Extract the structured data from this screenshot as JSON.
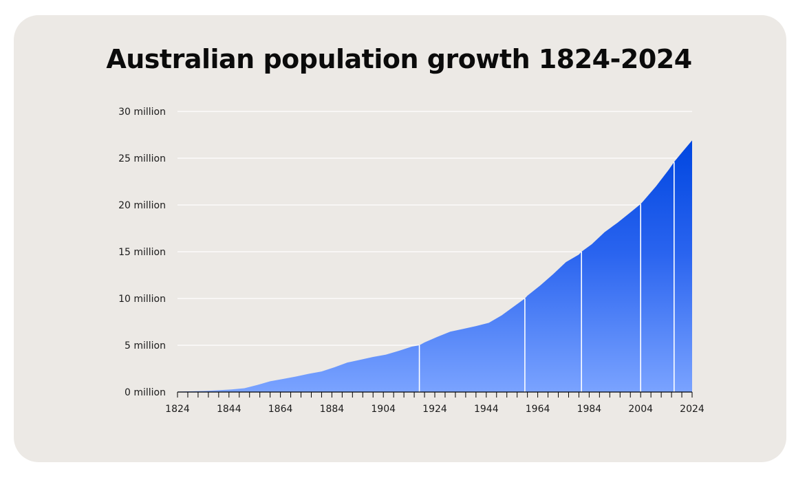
{
  "chart_data": {
    "type": "area",
    "title": "Australian population growth 1824-2024",
    "xlabel": "",
    "ylabel": "",
    "xlim": [
      1824,
      2024
    ],
    "ylim": [
      0,
      30000000
    ],
    "grid": true,
    "colors": {
      "top": "#0046e0",
      "bottom": "#7aa3ff",
      "background": "#ece9e5",
      "gridline": "#ffffff",
      "axis": "#000000"
    },
    "y_ticks": [
      {
        "value": 0,
        "label": "0 million"
      },
      {
        "value": 5000000,
        "label": "5 million"
      },
      {
        "value": 10000000,
        "label": "10 million"
      },
      {
        "value": 15000000,
        "label": "15 million"
      },
      {
        "value": 20000000,
        "label": "20 million"
      },
      {
        "value": 25000000,
        "label": "25 million"
      },
      {
        "value": 30000000,
        "label": "30 million"
      }
    ],
    "x_ticks": [
      {
        "value": 1824,
        "label": "1824"
      },
      {
        "value": 1844,
        "label": "1844"
      },
      {
        "value": 1864,
        "label": "1864"
      },
      {
        "value": 1884,
        "label": "1884"
      },
      {
        "value": 1904,
        "label": "1904"
      },
      {
        "value": 1924,
        "label": "1924"
      },
      {
        "value": 1944,
        "label": "1944"
      },
      {
        "value": 1964,
        "label": "1964"
      },
      {
        "value": 1984,
        "label": "1984"
      },
      {
        "value": 2004,
        "label": "2004"
      },
      {
        "value": 2024,
        "label": "2024"
      }
    ],
    "milestones": [
      1918,
      1959,
      1981,
      2004,
      2017
    ],
    "series": [
      {
        "x": [
          1824,
          1830,
          1835,
          1840,
          1845,
          1850,
          1855,
          1860,
          1865,
          1870,
          1875,
          1880,
          1885,
          1890,
          1895,
          1900,
          1905,
          1910,
          1915,
          1918,
          1920,
          1925,
          1930,
          1935,
          1940,
          1945,
          1950,
          1955,
          1959,
          1960,
          1965,
          1970,
          1975,
          1980,
          1981,
          1985,
          1990,
          1995,
          2000,
          2004,
          2005,
          2010,
          2015,
          2017,
          2020,
          2024
        ],
        "y": [
          50000,
          80000,
          120000,
          190000,
          280000,
          400000,
          750000,
          1150000,
          1400000,
          1650000,
          1950000,
          2200000,
          2650000,
          3150000,
          3450000,
          3750000,
          4000000,
          4400000,
          4850000,
          5000000,
          5300000,
          5900000,
          6450000,
          6750000,
          7050000,
          7400000,
          8200000,
          9200000,
          10000000,
          10300000,
          11400000,
          12600000,
          13900000,
          14700000,
          15000000,
          15800000,
          17100000,
          18100000,
          19200000,
          20100000,
          20400000,
          22000000,
          23800000,
          24600000,
          25600000,
          26900000
        ]
      }
    ]
  }
}
